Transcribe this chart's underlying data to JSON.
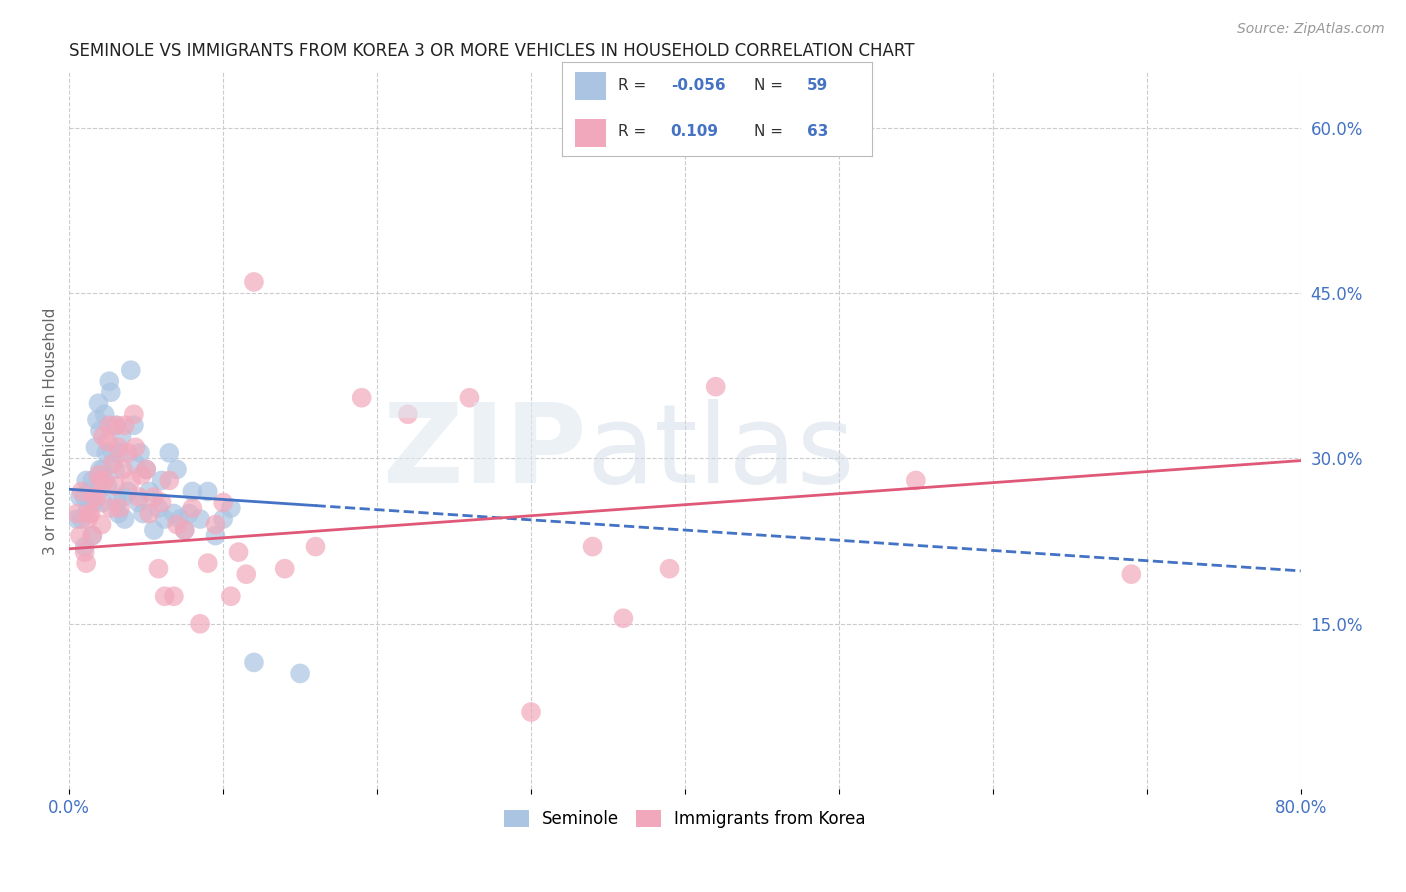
{
  "title": "SEMINOLE VS IMMIGRANTS FROM KOREA 3 OR MORE VEHICLES IN HOUSEHOLD CORRELATION CHART",
  "source": "Source: ZipAtlas.com",
  "ylabel": "3 or more Vehicles in Household",
  "x_min": 0.0,
  "x_max": 0.8,
  "y_min": 0.0,
  "y_max": 0.65,
  "x_ticks": [
    0.0,
    0.1,
    0.2,
    0.3,
    0.4,
    0.5,
    0.6,
    0.7,
    0.8
  ],
  "y_ticks_right": [
    0.15,
    0.3,
    0.45,
    0.6
  ],
  "y_tick_labels_right": [
    "15.0%",
    "30.0%",
    "45.0%",
    "60.0%"
  ],
  "color_seminole": "#aac4e2",
  "color_korea": "#f2a8bc",
  "color_seminole_line": "#4472c4",
  "color_korea_line": "#e05878",
  "color_text_blue": "#4472c4",
  "seminole_line_start_y": 0.272,
  "seminole_line_end_y": 0.198,
  "korea_line_start_y": 0.218,
  "korea_line_end_y": 0.298,
  "seminole_x": [
    0.005,
    0.007,
    0.008,
    0.01,
    0.01,
    0.011,
    0.012,
    0.013,
    0.015,
    0.015,
    0.016,
    0.017,
    0.018,
    0.019,
    0.02,
    0.02,
    0.022,
    0.022,
    0.023,
    0.024,
    0.025,
    0.026,
    0.027,
    0.028,
    0.03,
    0.03,
    0.031,
    0.032,
    0.033,
    0.034,
    0.035,
    0.036,
    0.038,
    0.04,
    0.042,
    0.043,
    0.045,
    0.046,
    0.048,
    0.05,
    0.052,
    0.055,
    0.058,
    0.06,
    0.062,
    0.065,
    0.068,
    0.07,
    0.072,
    0.075,
    0.078,
    0.08,
    0.085,
    0.09,
    0.095,
    0.1,
    0.105,
    0.12,
    0.15
  ],
  "seminole_y": [
    0.245,
    0.265,
    0.245,
    0.22,
    0.265,
    0.28,
    0.255,
    0.27,
    0.23,
    0.28,
    0.26,
    0.31,
    0.335,
    0.35,
    0.29,
    0.325,
    0.29,
    0.26,
    0.34,
    0.305,
    0.275,
    0.37,
    0.36,
    0.305,
    0.33,
    0.29,
    0.26,
    0.25,
    0.305,
    0.32,
    0.265,
    0.245,
    0.27,
    0.38,
    0.33,
    0.295,
    0.26,
    0.305,
    0.25,
    0.29,
    0.27,
    0.235,
    0.255,
    0.28,
    0.245,
    0.305,
    0.25,
    0.29,
    0.245,
    0.235,
    0.25,
    0.27,
    0.245,
    0.27,
    0.23,
    0.245,
    0.255,
    0.115,
    0.105
  ],
  "korea_x": [
    0.005,
    0.007,
    0.008,
    0.01,
    0.011,
    0.012,
    0.013,
    0.014,
    0.015,
    0.016,
    0.018,
    0.019,
    0.02,
    0.021,
    0.022,
    0.023,
    0.025,
    0.026,
    0.027,
    0.028,
    0.03,
    0.031,
    0.032,
    0.033,
    0.035,
    0.036,
    0.038,
    0.04,
    0.042,
    0.043,
    0.045,
    0.047,
    0.05,
    0.052,
    0.055,
    0.058,
    0.06,
    0.062,
    0.065,
    0.068,
    0.07,
    0.075,
    0.08,
    0.085,
    0.09,
    0.095,
    0.1,
    0.105,
    0.11,
    0.115,
    0.12,
    0.14,
    0.16,
    0.19,
    0.22,
    0.26,
    0.3,
    0.34,
    0.36,
    0.39,
    0.42,
    0.55,
    0.69
  ],
  "korea_y": [
    0.25,
    0.23,
    0.27,
    0.215,
    0.205,
    0.245,
    0.25,
    0.25,
    0.23,
    0.265,
    0.265,
    0.285,
    0.28,
    0.24,
    0.32,
    0.28,
    0.315,
    0.33,
    0.255,
    0.295,
    0.275,
    0.33,
    0.31,
    0.255,
    0.29,
    0.33,
    0.305,
    0.28,
    0.34,
    0.31,
    0.265,
    0.285,
    0.29,
    0.25,
    0.265,
    0.2,
    0.26,
    0.175,
    0.28,
    0.175,
    0.24,
    0.235,
    0.255,
    0.15,
    0.205,
    0.24,
    0.26,
    0.175,
    0.215,
    0.195,
    0.46,
    0.2,
    0.22,
    0.355,
    0.34,
    0.355,
    0.07,
    0.22,
    0.155,
    0.2,
    0.365,
    0.28,
    0.195
  ]
}
